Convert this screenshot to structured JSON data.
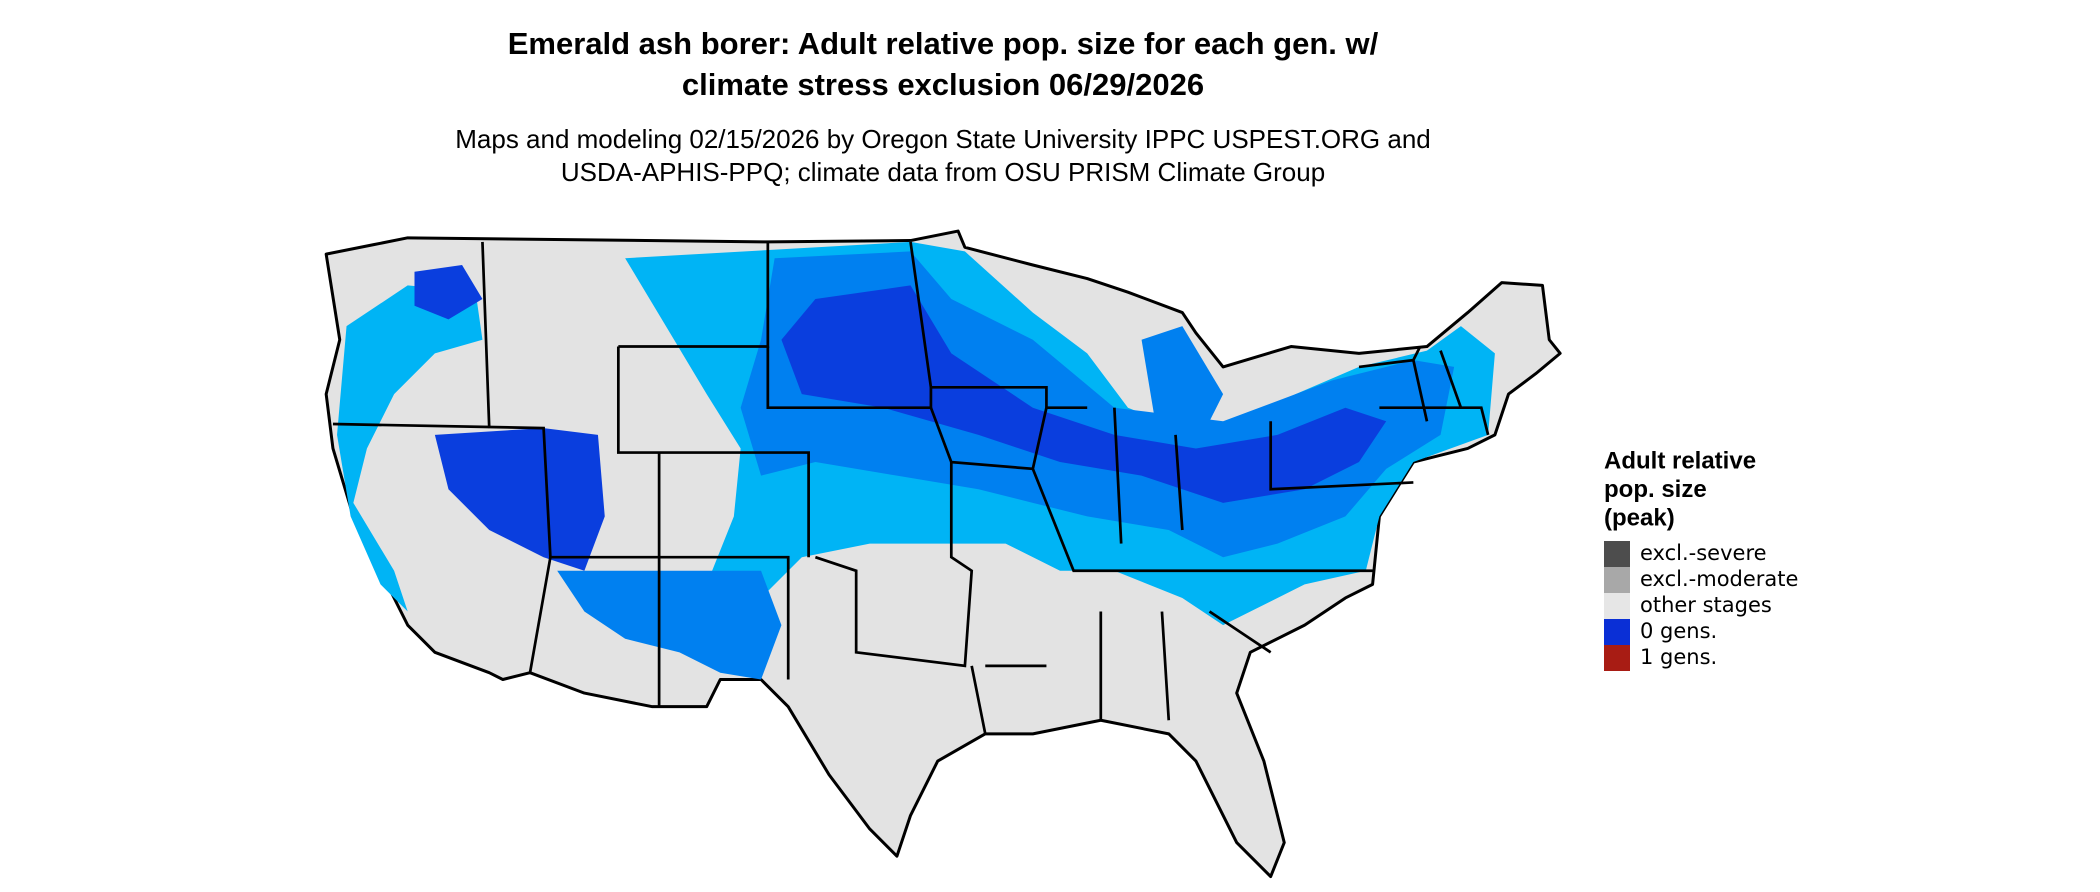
{
  "header": {
    "title_lines": [
      "Emerald ash borer: Adult relative pop. size for each gen. w/",
      "climate stress exclusion 06/29/2026"
    ],
    "subtitle_lines": [
      "Maps and modeling 02/15/2026 by Oregon State University IPPC USPEST.ORG and",
      "USDA-APHIS-PPQ; climate data from OSU PRISM Climate Group"
    ]
  },
  "legend": {
    "title_lines": [
      "Adult relative",
      "pop. size",
      "(peak)"
    ],
    "items": [
      {
        "label": "excl.-severe",
        "color": "#4d4d4d"
      },
      {
        "label": "excl.-moderate",
        "color": "#a8a8a8"
      },
      {
        "label": "other stages",
        "color": "#e6e6e6"
      },
      {
        "label": "0 gens.",
        "color": "#0a2fd6"
      },
      {
        "label": "1 gens.",
        "color": "#a81c14"
      }
    ]
  }
}
